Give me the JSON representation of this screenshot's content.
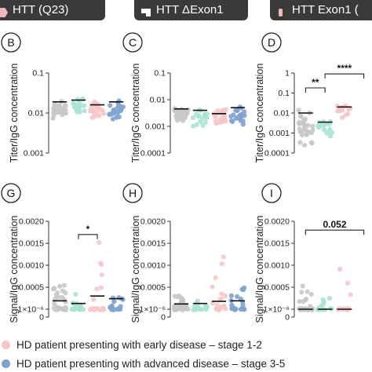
{
  "tabs": [
    {
      "label": "HTT (Q23)",
      "icon": "hexagon-icon"
    },
    {
      "label": "HTT ΔExon1",
      "icon": "protein-fragment-icon"
    },
    {
      "label": "HTT Exon1 (",
      "icon": "protein-fragment-icon"
    }
  ],
  "colors": {
    "control": "#c8c8c8",
    "prodromal": "#a8e4d4",
    "early": "#f7c6c6",
    "advanced": "#7fa3cf",
    "tab_bg": "#3a3a3a",
    "tab_icon": "#f3b8b8"
  },
  "legend": [
    {
      "label": "HD patient presenting with early disease – stage 1-2",
      "color": "#f7c6c6"
    },
    {
      "label": "HD patient presenting with advanced disease – stage 3-5",
      "color": "#7fa3cf"
    }
  ],
  "chart_data": [
    {
      "panel": "B",
      "type": "scatter",
      "scale": "log",
      "ylabel": "Titer/IgG concentration",
      "yticks": [
        "0.1",
        "0.01",
        "0.001"
      ],
      "ylim": [
        0.001,
        0.1
      ],
      "groups": [
        {
          "name": "",
          "color": "#c8c8c8",
          "median": 0.019,
          "min": 0.006,
          "max": 0.038,
          "n": 34
        },
        {
          "name": "",
          "color": "#a8e4d4",
          "median": 0.021,
          "min": 0.008,
          "max": 0.04,
          "n": 16
        },
        {
          "name": "",
          "color": "#f7c6c6",
          "median": 0.016,
          "min": 0.006,
          "max": 0.045,
          "n": 22
        },
        {
          "name": "",
          "color": "#7fa3cf",
          "median": 0.019,
          "min": 0.005,
          "max": 0.05,
          "n": 22
        }
      ],
      "significance": []
    },
    {
      "panel": "C",
      "type": "scatter",
      "scale": "log",
      "ylabel": "Titer/IgG concentration",
      "yticks": [
        "0.1",
        "0.01",
        "0.001",
        "0.0001"
      ],
      "ylim": [
        0.0001,
        0.1
      ],
      "groups": [
        {
          "name": "",
          "color": "#c8c8c8",
          "median": 0.0045,
          "min": 0.0008,
          "max": 0.02,
          "n": 34
        },
        {
          "name": "",
          "color": "#a8e4d4",
          "median": 0.004,
          "min": 0.0006,
          "max": 0.012,
          "n": 16
        },
        {
          "name": "",
          "color": "#f7c6c6",
          "median": 0.003,
          "min": 0.0009,
          "max": 0.018,
          "n": 22
        },
        {
          "name": "",
          "color": "#7fa3cf",
          "median": 0.005,
          "min": 0.0009,
          "max": 0.015,
          "n": 22
        }
      ],
      "significance": []
    },
    {
      "panel": "D",
      "type": "scatter",
      "scale": "log",
      "ylabel": "Titer/IgG concentration",
      "yticks": [
        "1",
        "0.1",
        "0.01",
        "0.001",
        "0.0001"
      ],
      "ylim": [
        0.0001,
        1
      ],
      "groups": [
        {
          "name": "",
          "color": "#c8c8c8",
          "median": 0.01,
          "min": 0.00012,
          "max": 0.08,
          "n": 34
        },
        {
          "name": "",
          "color": "#a8e4d4",
          "median": 0.0035,
          "min": 0.0004,
          "max": 0.03,
          "n": 16
        },
        {
          "name": "",
          "color": "#f7c6c6",
          "median": 0.02,
          "min": 0.003,
          "max": 0.15,
          "n": 14
        }
      ],
      "significance": [
        {
          "from": 0,
          "to": 1,
          "label": "**",
          "y": 0.18
        },
        {
          "from": 1,
          "to": 3,
          "label": "****",
          "y": 0.9
        }
      ]
    },
    {
      "panel": "G",
      "type": "scatter",
      "scale": "linear",
      "ylabel": "Signal/IgG concentration",
      "yticks": [
        "0.0020",
        "0.0015",
        "0.0010",
        "0.0005",
        "1×10⁻⁶",
        "0"
      ],
      "ylim": [
        0,
        0.002
      ],
      "groups": [
        {
          "name": "",
          "color": "#c8c8c8",
          "median": 0.00019,
          "min": 0.0,
          "max": 0.00055,
          "n": 34
        },
        {
          "name": "",
          "color": "#a8e4d4",
          "median": 0.00013,
          "min": 0.0,
          "max": 0.00035,
          "n": 16
        },
        {
          "name": "",
          "color": "#f7c6c6",
          "median": 0.0003,
          "min": 0.0,
          "max": 0.0017,
          "n": 22
        },
        {
          "name": "",
          "color": "#7fa3cf",
          "median": 0.00024,
          "min": 0.0,
          "max": 0.0004,
          "n": 22
        }
      ],
      "significance": [
        {
          "from": 1,
          "to": 2,
          "label": "*",
          "y": 0.0017
        }
      ]
    },
    {
      "panel": "H",
      "type": "scatter",
      "scale": "linear",
      "ylabel": "Signal/IgG concentration",
      "yticks": [
        "0.0020",
        "0.0015",
        "0.0010",
        "0.0005",
        "1×10⁻⁶",
        "0"
      ],
      "ylim": [
        0,
        0.002
      ],
      "groups": [
        {
          "name": "",
          "color": "#c8c8c8",
          "median": 0.00012,
          "min": 0.0,
          "max": 0.00032,
          "n": 34
        },
        {
          "name": "",
          "color": "#a8e4d4",
          "median": 0.00013,
          "min": 0.0,
          "max": 0.0002,
          "n": 16
        },
        {
          "name": "",
          "color": "#f7c6c6",
          "median": 0.00018,
          "min": 0.0,
          "max": 0.0013,
          "n": 22
        },
        {
          "name": "",
          "color": "#7fa3cf",
          "median": 0.00019,
          "min": 0.0,
          "max": 0.0005,
          "n": 22
        }
      ],
      "significance": []
    },
    {
      "panel": "I",
      "type": "scatter",
      "scale": "linear",
      "ylabel": "Signal/IgG concentration",
      "yticks": [
        "0.0020",
        "0.0015",
        "0.0010",
        "0.0005",
        "1×10⁻⁶",
        "0"
      ],
      "ylim": [
        0,
        0.002
      ],
      "groups": [
        {
          "name": "",
          "color": "#c8c8c8",
          "median": 0.0,
          "min": 0.0,
          "max": 0.0006,
          "n": 34
        },
        {
          "name": "",
          "color": "#a8e4d4",
          "median": 0.0,
          "min": 0.0,
          "max": 0.0003,
          "n": 16
        },
        {
          "name": "",
          "color": "#f7c6c6",
          "median": 0.0,
          "min": 0.0,
          "max": 0.0014,
          "n": 14
        }
      ],
      "significance": [
        {
          "from": 0,
          "to": 3,
          "label": "0.052",
          "y": 0.0018
        }
      ]
    }
  ]
}
